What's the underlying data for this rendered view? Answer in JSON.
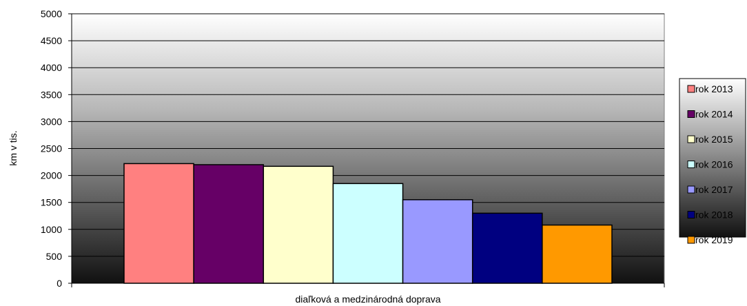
{
  "chart_data": {
    "type": "bar",
    "categories": [
      "diaľková a medzinárodná doprava"
    ],
    "series": [
      {
        "name": "rok 2013",
        "values": [
          2220
        ],
        "color": "#FF8080"
      },
      {
        "name": "rok 2014",
        "values": [
          2200
        ],
        "color": "#660066"
      },
      {
        "name": "rok 2015",
        "values": [
          2170
        ],
        "color": "#FFFFCC"
      },
      {
        "name": "rok 2016",
        "values": [
          1850
        ],
        "color": "#CCFFFF"
      },
      {
        "name": "rok 2017",
        "values": [
          1550
        ],
        "color": "#9999FF"
      },
      {
        "name": "rok 2018",
        "values": [
          1300
        ],
        "color": "#000080"
      },
      {
        "name": "rok 2019",
        "values": [
          1080
        ],
        "color": "#FF9900"
      }
    ],
    "title": "",
    "xlabel": "",
    "ylabel": "km v tis.",
    "ylim": [
      0,
      5000
    ],
    "yticks": [
      "0",
      "500",
      "1000",
      "1500",
      "2000",
      "2500",
      "3000",
      "3500",
      "4000",
      "4500",
      "5000"
    ],
    "grid": true,
    "legend_position": "right"
  }
}
